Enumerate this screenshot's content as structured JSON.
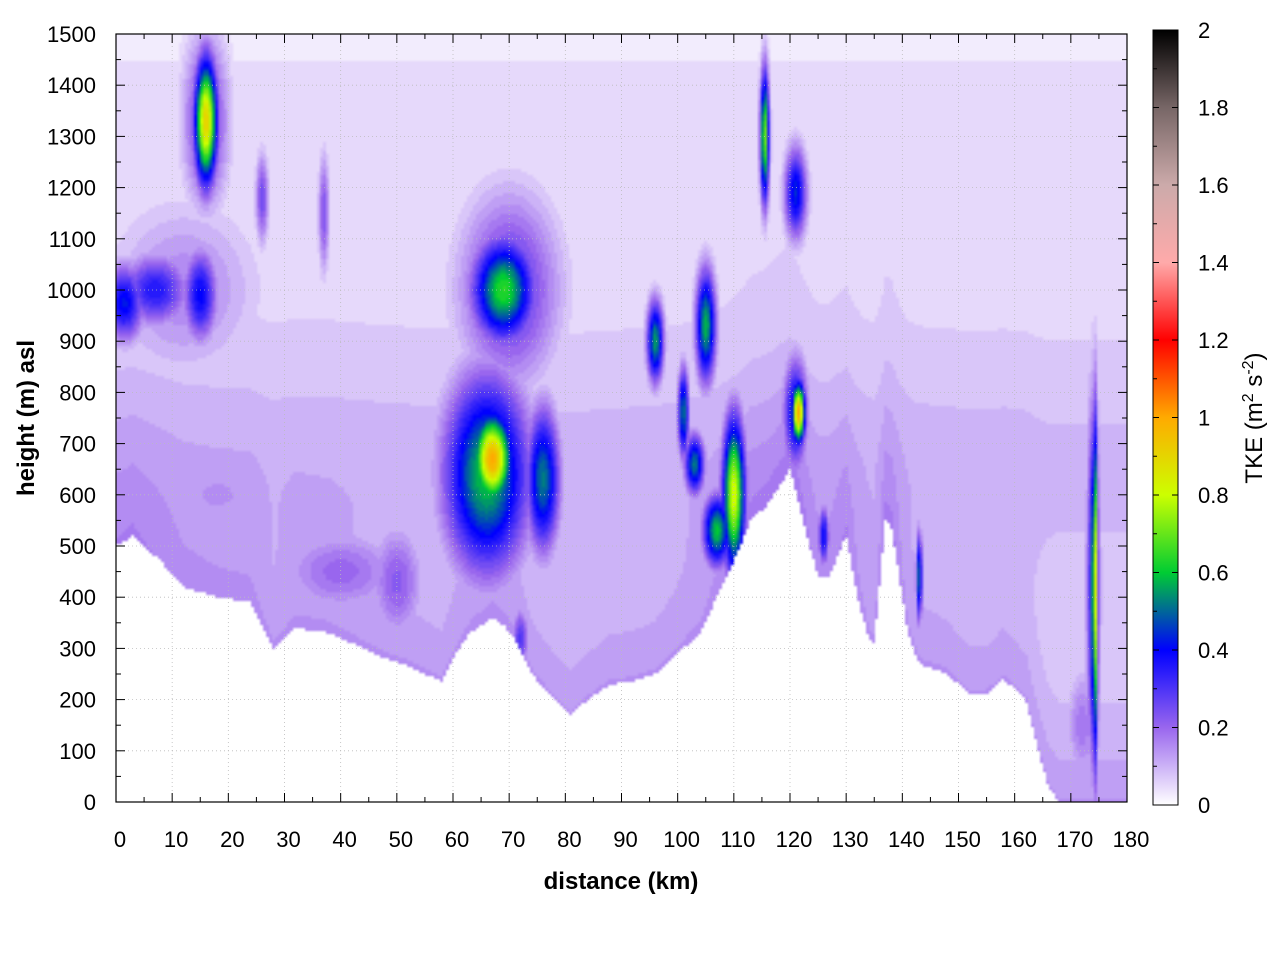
{
  "chart_data": {
    "type": "heatmap",
    "xlabel": "distance (km)",
    "ylabel": "height (m) asl",
    "colorbar_label": "TKE (m² s⁻²)",
    "colorbar_label_parts": {
      "base": "TKE (m",
      "sup1": "2",
      "mid": " s",
      "sup2": "-2",
      "end": ")"
    },
    "xlim": [
      0,
      180
    ],
    "ylim": [
      0,
      1500
    ],
    "clim": [
      0,
      2
    ],
    "x_ticks": [
      "0",
      "10",
      "20",
      "30",
      "40",
      "50",
      "60",
      "70",
      "80",
      "90",
      "100",
      "110",
      "120",
      "130",
      "140",
      "150",
      "160",
      "170",
      "180"
    ],
    "y_ticks": [
      "0",
      "100",
      "200",
      "300",
      "400",
      "500",
      "600",
      "700",
      "800",
      "900",
      "1000",
      "1100",
      "1200",
      "1300",
      "1400",
      "1500"
    ],
    "colorbar_ticks": [
      "0",
      "0.2",
      "0.4",
      "0.6",
      "0.8",
      "1",
      "1.2",
      "1.4",
      "1.6",
      "1.8",
      "2"
    ],
    "grid": true,
    "colormap_stops": [
      {
        "v": 0.0,
        "color": "#ffffff"
      },
      {
        "v": 0.2,
        "color": "#9966ee"
      },
      {
        "v": 0.4,
        "color": "#0000ff"
      },
      {
        "v": 0.6,
        "color": "#00cc33"
      },
      {
        "v": 0.8,
        "color": "#ccff00"
      },
      {
        "v": 1.0,
        "color": "#ffaa00"
      },
      {
        "v": 1.2,
        "color": "#ff0000"
      },
      {
        "v": 1.4,
        "color": "#ffaaaa"
      },
      {
        "v": 1.6,
        "color": "#ccaaaa"
      },
      {
        "v": 1.8,
        "color": "#776666"
      },
      {
        "v": 2.0,
        "color": "#000000"
      }
    ],
    "terrain_km_m": [
      [
        0,
        500
      ],
      [
        3,
        520
      ],
      [
        8,
        470
      ],
      [
        12,
        420
      ],
      [
        18,
        400
      ],
      [
        24,
        390
      ],
      [
        28,
        300
      ],
      [
        32,
        340
      ],
      [
        38,
        330
      ],
      [
        44,
        300
      ],
      [
        48,
        280
      ],
      [
        52,
        265
      ],
      [
        56,
        245
      ],
      [
        58,
        235
      ],
      [
        60,
        280
      ],
      [
        63,
        330
      ],
      [
        67,
        360
      ],
      [
        69,
        345
      ],
      [
        71,
        320
      ],
      [
        74,
        250
      ],
      [
        78,
        200
      ],
      [
        81,
        170
      ],
      [
        84,
        200
      ],
      [
        88,
        230
      ],
      [
        92,
        235
      ],
      [
        96,
        250
      ],
      [
        100,
        290
      ],
      [
        104,
        330
      ],
      [
        107,
        400
      ],
      [
        110,
        470
      ],
      [
        113,
        550
      ],
      [
        116,
        580
      ],
      [
        120,
        650
      ],
      [
        123,
        520
      ],
      [
        125,
        440
      ],
      [
        127,
        440
      ],
      [
        130,
        520
      ],
      [
        132,
        400
      ],
      [
        134,
        320
      ],
      [
        135,
        310
      ],
      [
        137,
        550
      ],
      [
        138,
        540
      ],
      [
        141,
        330
      ],
      [
        143,
        270
      ],
      [
        148,
        250
      ],
      [
        152,
        210
      ],
      [
        155,
        210
      ],
      [
        158,
        240
      ],
      [
        162,
        200
      ],
      [
        164,
        110
      ],
      [
        166,
        30
      ],
      [
        168,
        0
      ],
      [
        180,
        0
      ]
    ],
    "tke_features": [
      {
        "x": 1.5,
        "y": 975,
        "sx": 3.5,
        "sy": 75,
        "v": 0.42
      },
      {
        "x": 7,
        "y": 1000,
        "sx": 6,
        "sy": 70,
        "v": 0.36
      },
      {
        "x": 15,
        "y": 990,
        "sx": 3,
        "sy": 90,
        "v": 0.4
      },
      {
        "x": 12,
        "y": 1000,
        "sx": 14,
        "sy": 180,
        "v": 0.16
      },
      {
        "x": 16,
        "y": 1330,
        "sx": 2.0,
        "sy": 120,
        "v": 0.92
      },
      {
        "x": 16,
        "y": 1330,
        "sx": 4.0,
        "sy": 170,
        "v": 0.3
      },
      {
        "x": 26,
        "y": 1180,
        "sx": 1.2,
        "sy": 90,
        "v": 0.26
      },
      {
        "x": 37,
        "y": 1150,
        "sx": 1.0,
        "sy": 120,
        "v": 0.24
      },
      {
        "x": 18,
        "y": 600,
        "sx": 20,
        "sy": 150,
        "v": 0.14
      },
      {
        "x": 40,
        "y": 450,
        "sx": 12,
        "sy": 90,
        "v": 0.2
      },
      {
        "x": 50,
        "y": 430,
        "sx": 5,
        "sy": 120,
        "v": 0.22
      },
      {
        "x": 67,
        "y": 670,
        "sx": 3.5,
        "sy": 90,
        "v": 1.0
      },
      {
        "x": 66,
        "y": 640,
        "sx": 7.5,
        "sy": 190,
        "v": 0.6
      },
      {
        "x": 69,
        "y": 1000,
        "sx": 5.5,
        "sy": 100,
        "v": 0.64
      },
      {
        "x": 70,
        "y": 1000,
        "sx": 9,
        "sy": 190,
        "v": 0.3
      },
      {
        "x": 76,
        "y": 630,
        "sx": 3.0,
        "sy": 140,
        "v": 0.52
      },
      {
        "x": 72,
        "y": 320,
        "sx": 1.5,
        "sy": 60,
        "v": 0.3
      },
      {
        "x": 96,
        "y": 900,
        "sx": 1.5,
        "sy": 80,
        "v": 0.56
      },
      {
        "x": 101,
        "y": 760,
        "sx": 1.0,
        "sy": 90,
        "v": 0.52
      },
      {
        "x": 103,
        "y": 660,
        "sx": 1.8,
        "sy": 60,
        "v": 0.52
      },
      {
        "x": 105,
        "y": 930,
        "sx": 1.8,
        "sy": 110,
        "v": 0.58
      },
      {
        "x": 107,
        "y": 530,
        "sx": 2.5,
        "sy": 70,
        "v": 0.6
      },
      {
        "x": 110,
        "y": 600,
        "sx": 2.0,
        "sy": 150,
        "v": 0.82
      },
      {
        "x": 115.5,
        "y": 1300,
        "sx": 0.8,
        "sy": 130,
        "v": 0.72
      },
      {
        "x": 121,
        "y": 1190,
        "sx": 2.0,
        "sy": 90,
        "v": 0.44
      },
      {
        "x": 121.5,
        "y": 760,
        "sx": 1.2,
        "sy": 60,
        "v": 1.0
      },
      {
        "x": 121,
        "y": 760,
        "sx": 2.2,
        "sy": 110,
        "v": 0.44
      },
      {
        "x": 126,
        "y": 520,
        "sx": 1.0,
        "sy": 60,
        "v": 0.4
      },
      {
        "x": 143,
        "y": 440,
        "sx": 0.6,
        "sy": 90,
        "v": 0.5
      },
      {
        "x": 174.2,
        "y": 420,
        "sx": 0.45,
        "sy": 330,
        "v": 0.98
      },
      {
        "x": 174,
        "y": 420,
        "sx": 1.2,
        "sy": 380,
        "v": 0.4
      },
      {
        "x": 172,
        "y": 150,
        "sx": 3,
        "sy": 120,
        "v": 0.18
      }
    ]
  }
}
